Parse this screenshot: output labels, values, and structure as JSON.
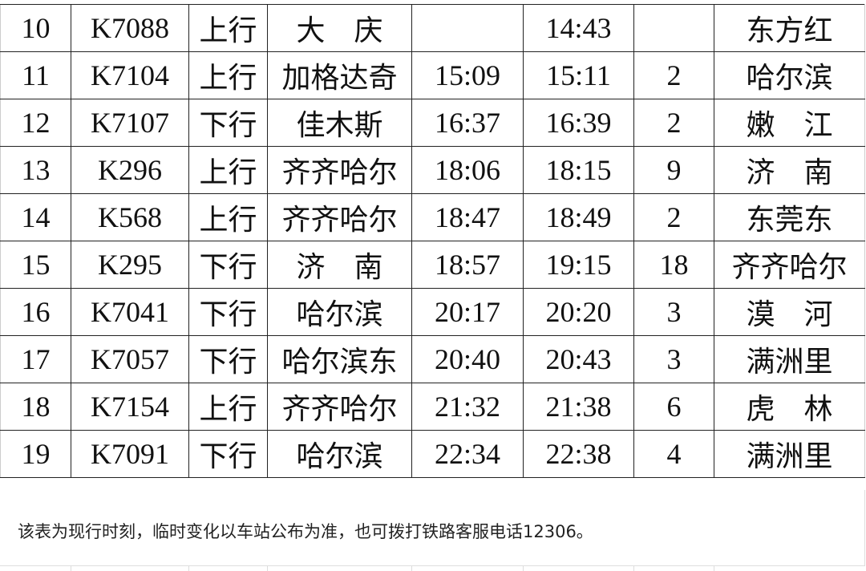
{
  "table": {
    "rows": [
      {
        "no": "10",
        "train": "K7088",
        "direction": "上行",
        "origin": "大　庆",
        "arrive": "",
        "depart": "14:43",
        "stop": "",
        "destination": "东方红"
      },
      {
        "no": "11",
        "train": "K7104",
        "direction": "上行",
        "origin": "加格达奇",
        "arrive": "15:09",
        "depart": "15:11",
        "stop": "2",
        "destination": "哈尔滨"
      },
      {
        "no": "12",
        "train": "K7107",
        "direction": "下行",
        "origin": "佳木斯",
        "arrive": "16:37",
        "depart": "16:39",
        "stop": "2",
        "destination": "嫩　江"
      },
      {
        "no": "13",
        "train": "K296",
        "direction": "上行",
        "origin": "齐齐哈尔",
        "arrive": "18:06",
        "depart": "18:15",
        "stop": "9",
        "destination": "济　南"
      },
      {
        "no": "14",
        "train": "K568",
        "direction": "上行",
        "origin": "齐齐哈尔",
        "arrive": "18:47",
        "depart": "18:49",
        "stop": "2",
        "destination": "东莞东"
      },
      {
        "no": "15",
        "train": "K295",
        "direction": "下行",
        "origin": "济　南",
        "arrive": "18:57",
        "depart": "19:15",
        "stop": "18",
        "destination": "齐齐哈尔"
      },
      {
        "no": "16",
        "train": "K7041",
        "direction": "下行",
        "origin": "哈尔滨",
        "arrive": "20:17",
        "depart": "20:20",
        "stop": "3",
        "destination": "漠　河"
      },
      {
        "no": "17",
        "train": "K7057",
        "direction": "下行",
        "origin": "哈尔滨东",
        "arrive": "20:40",
        "depart": "20:43",
        "stop": "3",
        "destination": "满洲里"
      },
      {
        "no": "18",
        "train": "K7154",
        "direction": "上行",
        "origin": "齐齐哈尔",
        "arrive": "21:32",
        "depart": "21:38",
        "stop": "6",
        "destination": "虎　林"
      },
      {
        "no": "19",
        "train": "K7091",
        "direction": "下行",
        "origin": "哈尔滨",
        "arrive": "22:34",
        "depart": "22:38",
        "stop": "4",
        "destination": "满洲里"
      }
    ]
  },
  "footer": {
    "note": "该表为现行时刻，临时变化以车站公布为准，也可拨打铁路客服电话12306。"
  }
}
